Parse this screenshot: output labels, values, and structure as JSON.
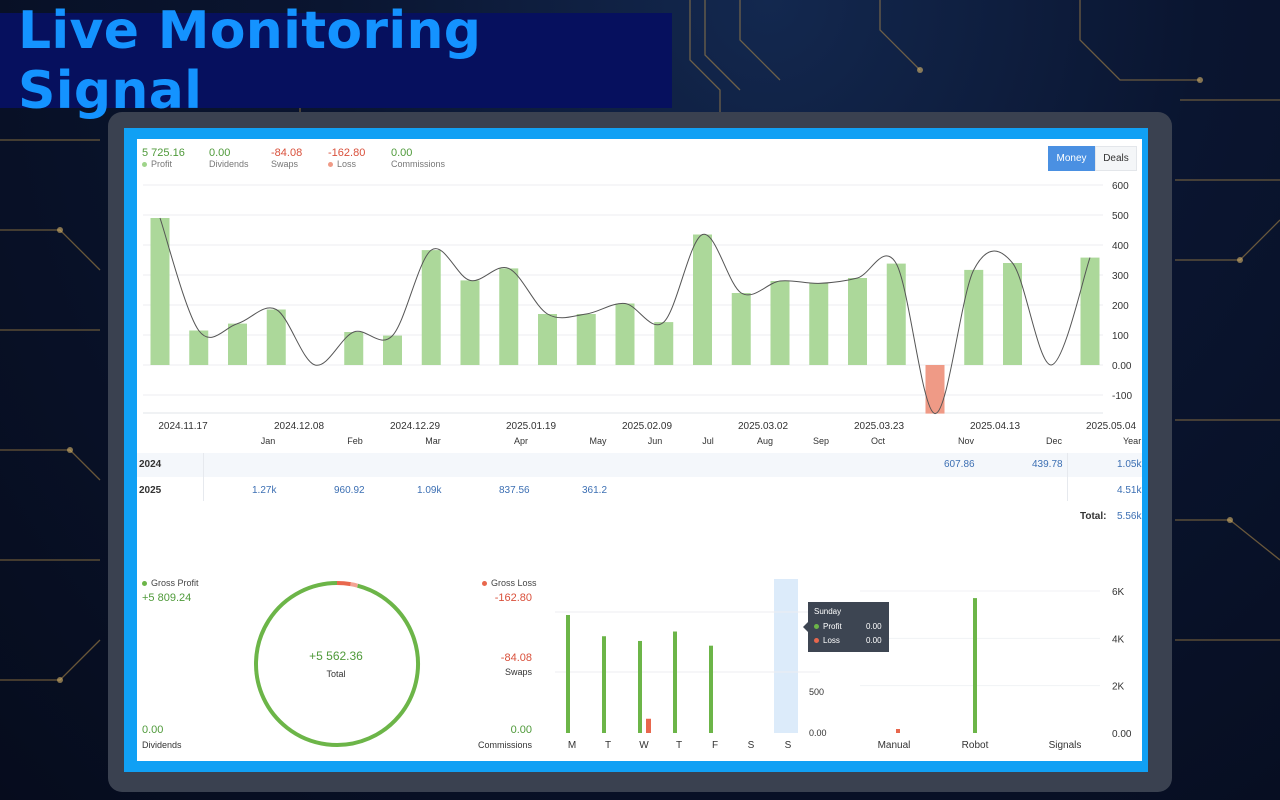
{
  "banner": {
    "title": "Live Monitoring Signal"
  },
  "summary": [
    {
      "value": "5 725.16",
      "label": "Profit",
      "color": "#4f9a3a",
      "dot": "#9fd48a"
    },
    {
      "value": "0.00",
      "label": "Dividends",
      "color": "#4f9a3a",
      "dot": ""
    },
    {
      "value": "-84.08",
      "label": "Swaps",
      "color": "#d9503b",
      "dot": ""
    },
    {
      "value": "-162.80",
      "label": "Loss",
      "color": "#d9503b",
      "dot": "#ef9a86"
    },
    {
      "value": "0.00",
      "label": "Commissions",
      "color": "#4f9a3a",
      "dot": ""
    }
  ],
  "toggle": {
    "money": "Money",
    "deals": "Deals"
  },
  "chart_data": [
    {
      "type": "bar",
      "values": [
        490,
        115,
        138,
        185,
        0,
        110,
        98,
        383,
        282,
        322,
        170,
        170,
        205,
        143,
        435,
        240,
        280,
        272,
        290,
        338,
        -162,
        317,
        340,
        0,
        358
      ],
      "line_values": [
        490,
        115,
        138,
        185,
        0,
        110,
        98,
        383,
        282,
        322,
        170,
        170,
        205,
        143,
        435,
        240,
        280,
        272,
        290,
        338,
        -162,
        317,
        340,
        0,
        358
      ],
      "y_ticks": [
        "600",
        "500",
        "400",
        "300",
        "200",
        "100",
        "0.00",
        "-100"
      ],
      "ylim": [
        -160,
        600
      ],
      "x_ticks": [
        "2024.11.17",
        "2024.12.08",
        "2024.12.29",
        "2025.01.19",
        "2025.02.09",
        "2025.03.02",
        "2025.03.23",
        "2025.04.13",
        "2025.05.04"
      ],
      "colors": {
        "positive": "#acd89a",
        "negative": "#ef9a86",
        "line": "#555555"
      }
    },
    {
      "type": "bar",
      "categories": [
        "M",
        "T",
        "W",
        "T",
        "F",
        "S",
        "S"
      ],
      "series": [
        {
          "name": "Profit",
          "values": [
            1000,
            820,
            780,
            860,
            740,
            0,
            0
          ]
        },
        {
          "name": "Loss",
          "values": [
            0,
            0,
            95,
            0,
            0,
            0,
            0
          ]
        }
      ],
      "y_ticks": [
        "500",
        "0.00"
      ],
      "highlight_index": 6,
      "colors": {
        "profit": "#6cb548",
        "loss": "#e8674d",
        "highlight": "#dcebfa"
      }
    },
    {
      "type": "bar",
      "categories": [
        "Manual",
        "Robot",
        "Signals"
      ],
      "series": [
        {
          "name": "Profit",
          "values": [
            0,
            5700,
            0
          ]
        },
        {
          "name": "Loss",
          "values": [
            90,
            0,
            0
          ]
        }
      ],
      "y_ticks": [
        "6K",
        "4K",
        "2K",
        "0.00"
      ],
      "ylim": [
        0,
        6000
      ]
    }
  ],
  "monthly": {
    "months": [
      "Jan",
      "Feb",
      "Mar",
      "Apr",
      "May",
      "Jun",
      "Jul",
      "Aug",
      "Sep",
      "Oct",
      "Nov",
      "Dec"
    ],
    "year_label": "Year",
    "rows": [
      {
        "year": "2024",
        "nov": "607.86",
        "dec": "439.78",
        "total": "1.05k"
      },
      {
        "year": "2025",
        "jan": "1.27k",
        "feb": "960.92",
        "mar": "1.09k",
        "apr": "837.56",
        "may": "361.2",
        "total": "4.51k"
      }
    ],
    "total_label": "Total:",
    "total_value": "5.56k"
  },
  "gross": {
    "profit_label": "Gross Profit",
    "profit_value": "+5 809.24",
    "dividends_value": "0.00",
    "dividends_label": "Dividends",
    "center_value": "+5 562.36",
    "center_label": "Total",
    "loss_label": "Gross Loss",
    "loss_value": "-162.80",
    "swaps_value": "-84.08",
    "swaps_label": "Swaps",
    "commissions_value": "0.00",
    "commissions_label": "Commissions",
    "ring": {
      "profit": 5809.24,
      "loss": 162.8,
      "swaps": 84.08
    }
  },
  "tooltip": {
    "day": "Sunday",
    "profit_label": "Profit",
    "profit_value": "0.00",
    "loss_label": "Loss",
    "loss_value": "0.00"
  }
}
